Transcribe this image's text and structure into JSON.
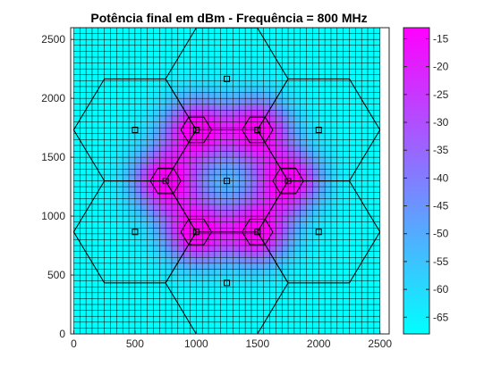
{
  "chart_data": {
    "type": "heatmap",
    "title": "Potência final em dBm - Frequência  = 800 MHz",
    "xlim": [
      -25,
      2575
    ],
    "ylim": [
      0,
      2600
    ],
    "x_ticks": [
      0,
      500,
      1000,
      1500,
      2000,
      2500
    ],
    "y_ticks": [
      0,
      500,
      1000,
      1500,
      2000,
      2500
    ],
    "grid_extent": {
      "x": [
        0,
        2500
      ],
      "y": [
        0,
        2600
      ]
    },
    "grid_step": 50,
    "colorbar": {
      "range": [
        -68,
        -13
      ],
      "ticks": [
        -15,
        -20,
        -25,
        -30,
        -35,
        -40,
        -45,
        -50,
        -55,
        -60,
        -65
      ],
      "colormap": "cool",
      "low_color": "#00ffff",
      "high_color": "#ff00ff"
    },
    "hot_cells": [
      {
        "x": 1000,
        "y": 1732,
        "peak_dbm": -13
      },
      {
        "x": 1500,
        "y": 1732,
        "peak_dbm": -13
      },
      {
        "x": 750,
        "y": 1299,
        "peak_dbm": -13
      },
      {
        "x": 1750,
        "y": 1299,
        "peak_dbm": -13
      },
      {
        "x": 1000,
        "y": 866,
        "peak_dbm": -13
      },
      {
        "x": 1500,
        "y": 866,
        "peak_dbm": -13
      }
    ],
    "other_stations": [
      {
        "x": 1250,
        "y": 2165
      },
      {
        "x": 500,
        "y": 1732
      },
      {
        "x": 2000,
        "y": 1732
      },
      {
        "x": 1250,
        "y": 1299
      },
      {
        "x": 500,
        "y": 866
      },
      {
        "x": 2000,
        "y": 866
      },
      {
        "x": 1250,
        "y": 433
      }
    ],
    "macro_hexagons": [
      {
        "cx": 1250,
        "cy": 2165
      },
      {
        "cx": 500,
        "cy": 1732
      },
      {
        "cx": 2000,
        "cy": 1732
      },
      {
        "cx": 1250,
        "cy": 1299
      },
      {
        "cx": 500,
        "cy": 866
      },
      {
        "cx": 2000,
        "cy": 866
      },
      {
        "cx": 1250,
        "cy": 433
      }
    ],
    "macro_hex_radius": 500,
    "small_hex_radius": 125,
    "falloff": {
      "base_dbm": -68,
      "delta_dbm": 55,
      "radius": 260
    },
    "colors": {
      "grid_line": "#000000",
      "axis": "#262626"
    }
  }
}
